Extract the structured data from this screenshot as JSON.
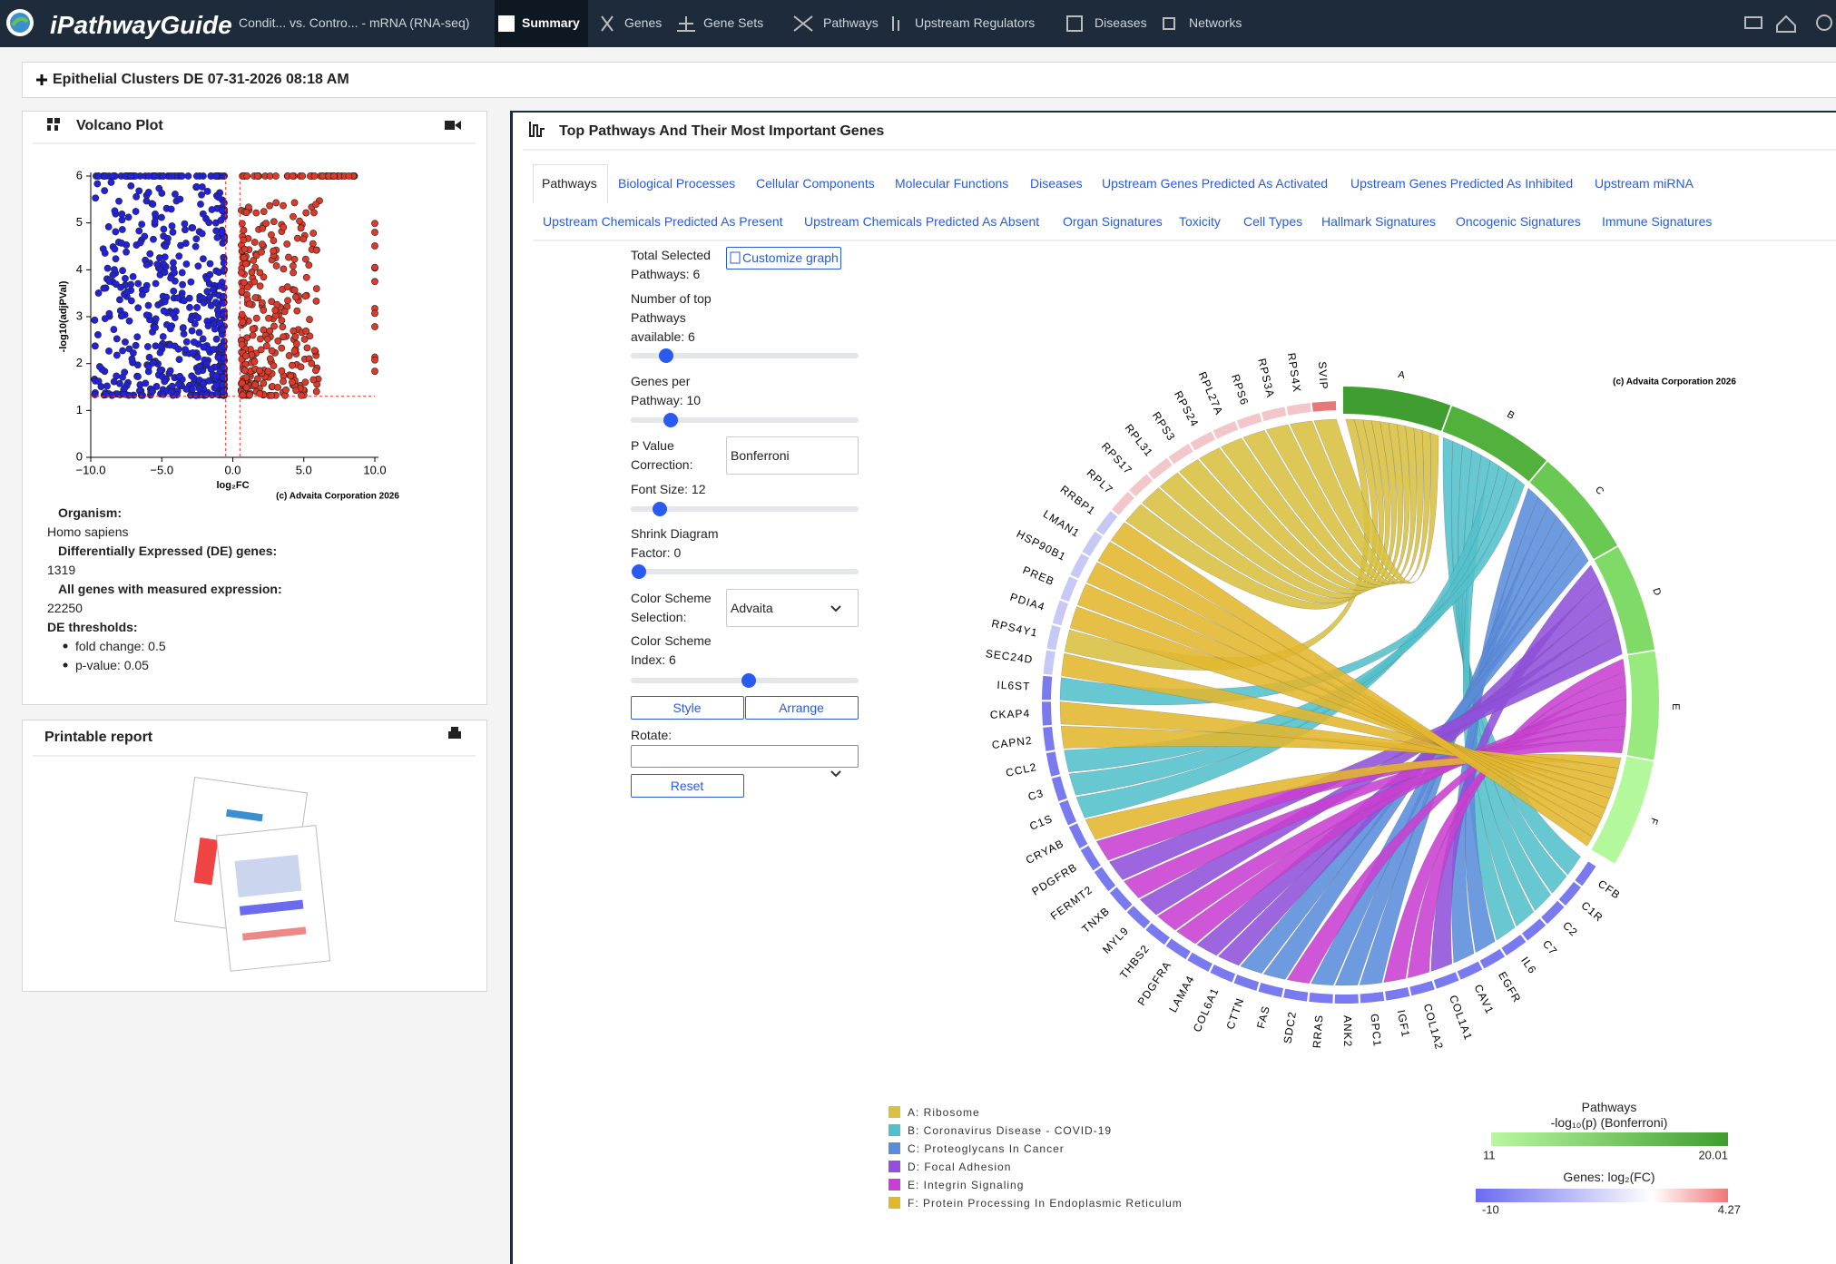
{
  "nav": {
    "brand": "iPathwayGuide",
    "context": "Condit... vs. Contro... - mRNA (RNA-seq)",
    "items": [
      "Summary",
      "Genes",
      "Gene Sets",
      "Pathways",
      "Upstream Regulators",
      "Diseases",
      "Networks"
    ]
  },
  "header": {
    "title": "Epithelial Clusters DE 07-31-2026 08:18 AM"
  },
  "volcano": {
    "title": "Volcano Plot",
    "xlabel": "log₂FC",
    "ylabel": "-log10(adjPVal)",
    "copyright": "(c) Advaita Corporation 2026",
    "xlim": [
      -10,
      10
    ],
    "ylim": [
      0,
      6
    ],
    "xticks": [
      {
        "value": -10,
        "label": "−10.0"
      },
      {
        "value": -5,
        "label": "−5.0"
      },
      {
        "value": 0,
        "label": "0.0"
      },
      {
        "value": 5,
        "label": "5.0"
      },
      {
        "value": 10,
        "label": "10.0"
      }
    ],
    "yticks": [
      0,
      1,
      2,
      3,
      4,
      5,
      6
    ]
  },
  "summary": {
    "rows": [
      {
        "label": "Organism:",
        "value": "Homo sapiens"
      },
      {
        "label": "Differentially Expressed (DE) genes:",
        "value": "1319"
      },
      {
        "label": "All genes with measured expression:",
        "value": "22250"
      }
    ],
    "thresholds": {
      "label": "DE thresholds:",
      "items": [
        "fold change: 0.5",
        "p-value: 0.05"
      ]
    }
  },
  "report": {
    "title": "Printable report"
  },
  "panel": {
    "title": "Top Pathways And Their Most Important Genes",
    "tabs": [
      "Pathways",
      "Biological Processes",
      "Cellular Components",
      "Molecular Functions",
      "Diseases",
      "Upstream Genes Predicted As Activated",
      "Upstream Genes Predicted As Inhibited",
      "Upstream miRNA"
    ],
    "tabs2": [
      "Upstream Chemicals Predicted As Present",
      "Upstream Chemicals Predicted As Absent",
      "Organ Signatures",
      "Toxicity",
      "Cell Types",
      "Hallmark Signatures",
      "Oncogenic Signatures",
      "Immune Signatures"
    ]
  },
  "controls": {
    "total": "Total Selected Pathways: 6",
    "customize": "Customize graph",
    "top": "Number of top Pathways available: 6",
    "genes": "Genes per Pathway: 10",
    "pvalue": "P Value Correction:",
    "pvalue_choice": "Bonferroni",
    "font": "Font Size: 12",
    "shrink": "Shrink Diagram Factor: 0",
    "scheme": "Color Scheme Selection:",
    "scheme_choice": "Advaita",
    "index": "Color Scheme Index: 6",
    "style": "Style",
    "arrange": "Arrange",
    "rotate": "Rotate:",
    "reset": "Reset"
  },
  "chord": {
    "copyright": "(c) Advaita Corporation 2026",
    "pathways": [
      "A",
      "B",
      "C",
      "D",
      "E",
      "F"
    ],
    "genes": [
      "CFB",
      "C1R",
      "C2",
      "C7",
      "IL6",
      "EGFR",
      "CAV1",
      "COL1A1",
      "COL1A2",
      "IGF1",
      "GPC1",
      "ANK2",
      "RRAS",
      "SDC2",
      "FAS",
      "CTTN",
      "COL6A1",
      "LAMA4",
      "PDGFRA",
      "THBS2",
      "MYL9",
      "TNXB",
      "FERMT2",
      "PDGFRB",
      "CRYAB",
      "C1S",
      "C3",
      "CCL2",
      "CAPN2",
      "CKAP4",
      "IL6ST",
      "SEC24D",
      "RPS4Y1",
      "PDIA4",
      "PREB",
      "HSP90B1",
      "LMAN1",
      "RRBP1",
      "RPL7",
      "RPS17",
      "RPL31",
      "RPS3",
      "RPS24",
      "RPL27A",
      "RPS6",
      "RPS3A",
      "RPS4X",
      "SVIP"
    ],
    "legend": [
      "A: Ribosome",
      "B: Coronavirus Disease - COVID-19",
      "C: Proteoglycans In Cancer",
      "D: Focal Adhesion",
      "E: Integrin Signaling",
      "F: Protein Processing In Endoplasmic Reticulum"
    ]
  },
  "scales": {
    "pathways": {
      "title": "Pathways",
      "subtitle": "-log₁₀(p) (Bonferroni)",
      "min": "11",
      "max": "20.01"
    },
    "genes": {
      "title": "Genes: log₂(FC)",
      "min": "-10",
      "max": "4.27"
    }
  }
}
